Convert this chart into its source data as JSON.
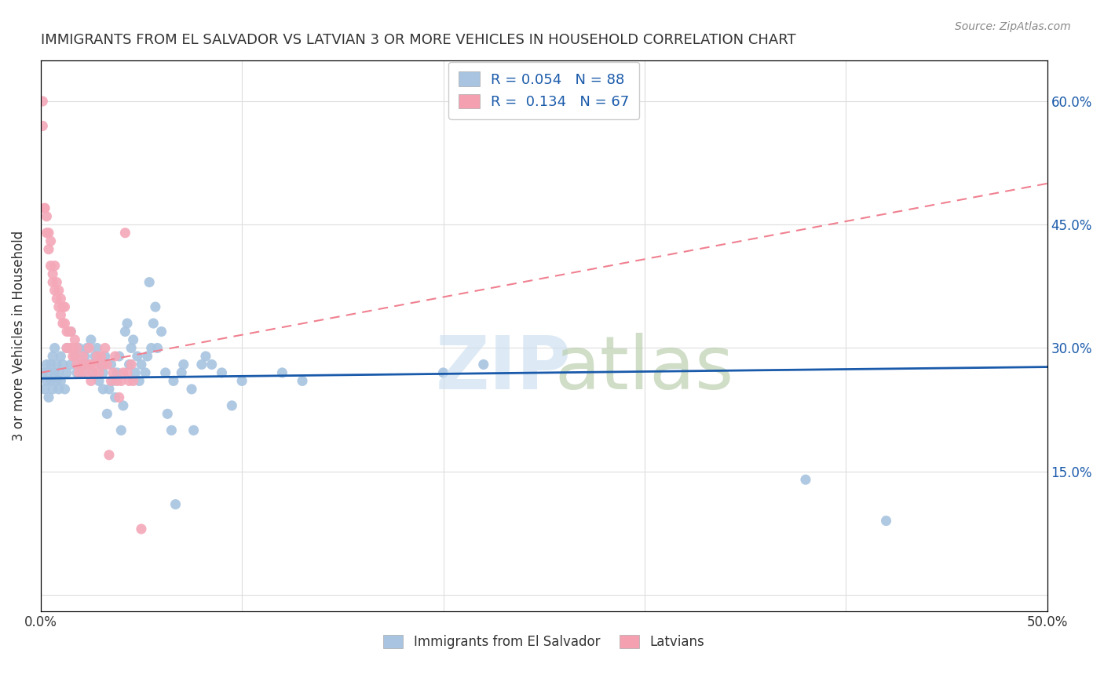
{
  "title": "IMMIGRANTS FROM EL SALVADOR VS LATVIAN 3 OR MORE VEHICLES IN HOUSEHOLD CORRELATION CHART",
  "source": "Source: ZipAtlas.com",
  "ylabel": "3 or more Vehicles in Household",
  "ytick_values": [
    0.0,
    0.15,
    0.3,
    0.45,
    0.6
  ],
  "ytick_labels": [
    "",
    "15.0%",
    "30.0%",
    "45.0%",
    "60.0%"
  ],
  "xlim": [
    0.0,
    0.5
  ],
  "ylim": [
    -0.02,
    0.65
  ],
  "legend_color1": "#a8c4e0",
  "legend_color2": "#f4a0b0",
  "dot_color_blue": "#a8c4e0",
  "dot_color_pink": "#f4a8b8",
  "trendline_blue_color": "#1a5aaa",
  "trendline_pink_color": "#f08090",
  "blue_scatter": [
    [
      0.001,
      0.27
    ],
    [
      0.002,
      0.25
    ],
    [
      0.003,
      0.26
    ],
    [
      0.003,
      0.28
    ],
    [
      0.004,
      0.24
    ],
    [
      0.004,
      0.27
    ],
    [
      0.005,
      0.26
    ],
    [
      0.005,
      0.28
    ],
    [
      0.006,
      0.25
    ],
    [
      0.006,
      0.29
    ],
    [
      0.007,
      0.27
    ],
    [
      0.007,
      0.3
    ],
    [
      0.008,
      0.26
    ],
    [
      0.008,
      0.28
    ],
    [
      0.009,
      0.25
    ],
    [
      0.009,
      0.27
    ],
    [
      0.01,
      0.26
    ],
    [
      0.01,
      0.29
    ],
    [
      0.011,
      0.28
    ],
    [
      0.012,
      0.25
    ],
    [
      0.013,
      0.27
    ],
    [
      0.013,
      0.3
    ],
    [
      0.015,
      0.28
    ],
    [
      0.015,
      0.32
    ],
    [
      0.017,
      0.29
    ],
    [
      0.018,
      0.27
    ],
    [
      0.019,
      0.3
    ],
    [
      0.02,
      0.28
    ],
    [
      0.021,
      0.27
    ],
    [
      0.022,
      0.29
    ],
    [
      0.023,
      0.3
    ],
    [
      0.024,
      0.28
    ],
    [
      0.025,
      0.31
    ],
    [
      0.026,
      0.27
    ],
    [
      0.027,
      0.29
    ],
    [
      0.028,
      0.3
    ],
    [
      0.029,
      0.26
    ],
    [
      0.03,
      0.28
    ],
    [
      0.031,
      0.25
    ],
    [
      0.031,
      0.27
    ],
    [
      0.032,
      0.29
    ],
    [
      0.033,
      0.22
    ],
    [
      0.034,
      0.25
    ],
    [
      0.035,
      0.28
    ],
    [
      0.036,
      0.26
    ],
    [
      0.037,
      0.24
    ],
    [
      0.038,
      0.27
    ],
    [
      0.039,
      0.29
    ],
    [
      0.04,
      0.2
    ],
    [
      0.041,
      0.23
    ],
    [
      0.042,
      0.32
    ],
    [
      0.043,
      0.33
    ],
    [
      0.044,
      0.28
    ],
    [
      0.045,
      0.3
    ],
    [
      0.046,
      0.31
    ],
    [
      0.047,
      0.27
    ],
    [
      0.048,
      0.29
    ],
    [
      0.049,
      0.26
    ],
    [
      0.05,
      0.28
    ],
    [
      0.052,
      0.27
    ],
    [
      0.053,
      0.29
    ],
    [
      0.054,
      0.38
    ],
    [
      0.055,
      0.3
    ],
    [
      0.056,
      0.33
    ],
    [
      0.057,
      0.35
    ],
    [
      0.058,
      0.3
    ],
    [
      0.06,
      0.32
    ],
    [
      0.062,
      0.27
    ],
    [
      0.063,
      0.22
    ],
    [
      0.065,
      0.2
    ],
    [
      0.066,
      0.26
    ],
    [
      0.067,
      0.11
    ],
    [
      0.07,
      0.27
    ],
    [
      0.071,
      0.28
    ],
    [
      0.075,
      0.25
    ],
    [
      0.076,
      0.2
    ],
    [
      0.08,
      0.28
    ],
    [
      0.082,
      0.29
    ],
    [
      0.085,
      0.28
    ],
    [
      0.09,
      0.27
    ],
    [
      0.095,
      0.23
    ],
    [
      0.1,
      0.26
    ],
    [
      0.12,
      0.27
    ],
    [
      0.13,
      0.26
    ],
    [
      0.2,
      0.27
    ],
    [
      0.22,
      0.28
    ],
    [
      0.38,
      0.14
    ],
    [
      0.42,
      0.09
    ]
  ],
  "pink_scatter": [
    [
      0.001,
      0.57
    ],
    [
      0.001,
      0.6
    ],
    [
      0.002,
      0.47
    ],
    [
      0.002,
      0.47
    ],
    [
      0.003,
      0.44
    ],
    [
      0.003,
      0.46
    ],
    [
      0.004,
      0.42
    ],
    [
      0.004,
      0.44
    ],
    [
      0.005,
      0.4
    ],
    [
      0.005,
      0.43
    ],
    [
      0.006,
      0.38
    ],
    [
      0.006,
      0.39
    ],
    [
      0.007,
      0.4
    ],
    [
      0.007,
      0.37
    ],
    [
      0.008,
      0.36
    ],
    [
      0.008,
      0.38
    ],
    [
      0.009,
      0.35
    ],
    [
      0.009,
      0.37
    ],
    [
      0.01,
      0.34
    ],
    [
      0.01,
      0.36
    ],
    [
      0.011,
      0.33
    ],
    [
      0.011,
      0.35
    ],
    [
      0.012,
      0.33
    ],
    [
      0.012,
      0.35
    ],
    [
      0.013,
      0.3
    ],
    [
      0.013,
      0.32
    ],
    [
      0.014,
      0.3
    ],
    [
      0.014,
      0.32
    ],
    [
      0.015,
      0.3
    ],
    [
      0.015,
      0.32
    ],
    [
      0.016,
      0.29
    ],
    [
      0.016,
      0.3
    ],
    [
      0.017,
      0.29
    ],
    [
      0.017,
      0.31
    ],
    [
      0.018,
      0.28
    ],
    [
      0.018,
      0.3
    ],
    [
      0.019,
      0.27
    ],
    [
      0.02,
      0.28
    ],
    [
      0.021,
      0.29
    ],
    [
      0.022,
      0.27
    ],
    [
      0.023,
      0.28
    ],
    [
      0.024,
      0.3
    ],
    [
      0.025,
      0.26
    ],
    [
      0.025,
      0.28
    ],
    [
      0.026,
      0.27
    ],
    [
      0.027,
      0.28
    ],
    [
      0.028,
      0.29
    ],
    [
      0.029,
      0.27
    ],
    [
      0.03,
      0.29
    ],
    [
      0.031,
      0.28
    ],
    [
      0.032,
      0.3
    ],
    [
      0.033,
      0.28
    ],
    [
      0.034,
      0.17
    ],
    [
      0.035,
      0.26
    ],
    [
      0.036,
      0.27
    ],
    [
      0.037,
      0.29
    ],
    [
      0.038,
      0.26
    ],
    [
      0.039,
      0.24
    ],
    [
      0.04,
      0.26
    ],
    [
      0.041,
      0.27
    ],
    [
      0.042,
      0.44
    ],
    [
      0.043,
      0.27
    ],
    [
      0.044,
      0.26
    ],
    [
      0.045,
      0.28
    ],
    [
      0.046,
      0.26
    ],
    [
      0.05,
      0.08
    ]
  ],
  "blue_trendline_x": [
    0.0,
    0.5
  ],
  "blue_trendline_y": [
    0.263,
    0.277
  ],
  "pink_trendline_x": [
    0.0,
    0.5
  ],
  "pink_trendline_y": [
    0.27,
    0.5
  ]
}
